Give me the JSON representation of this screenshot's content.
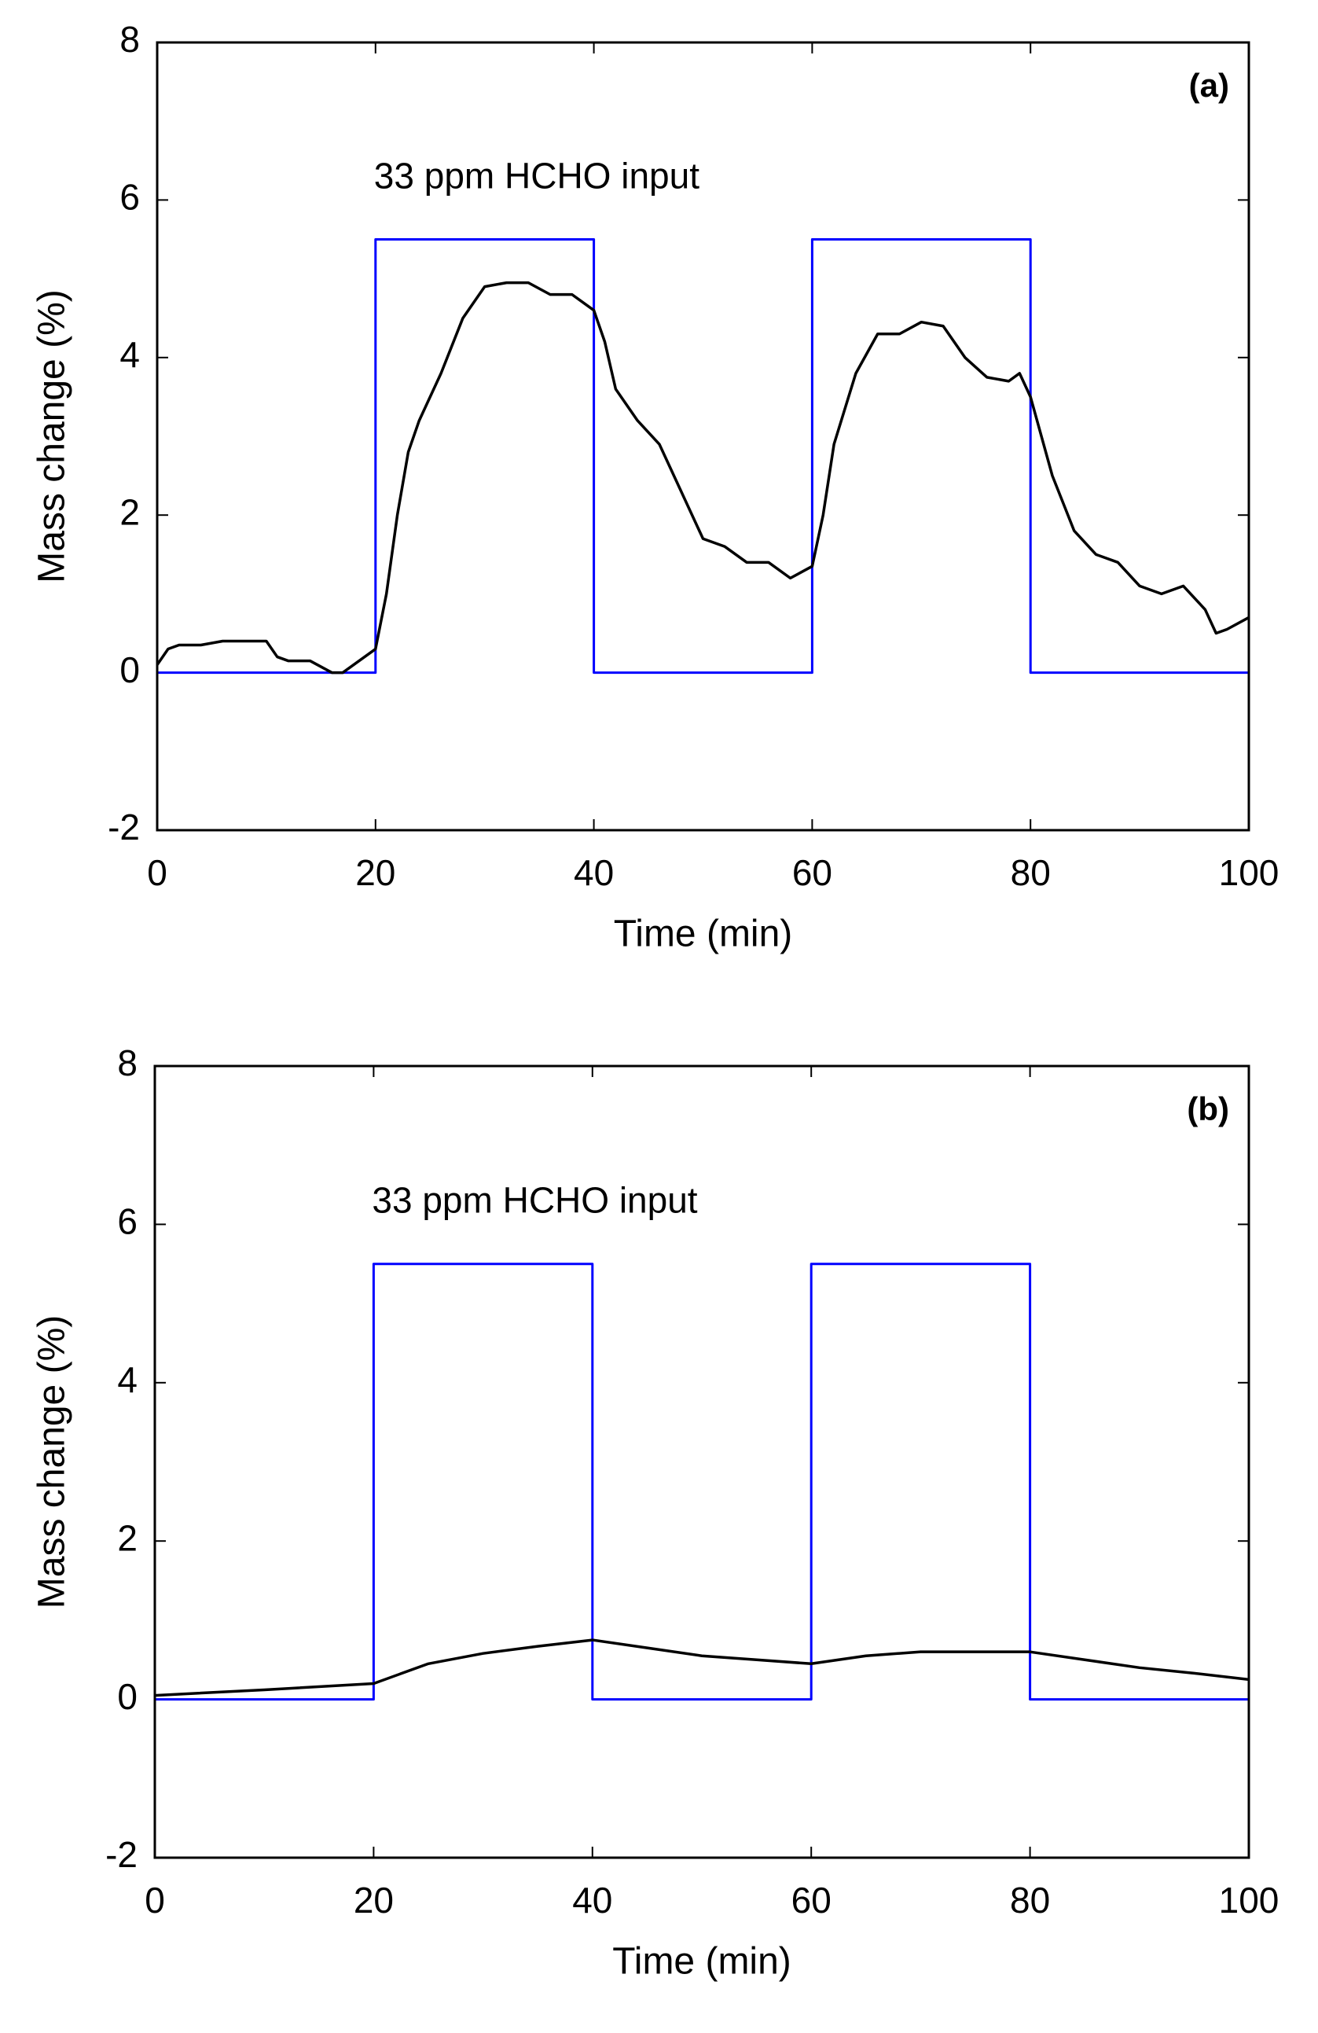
{
  "chart_data": [
    {
      "type": "line",
      "panel_label": "(a)",
      "annotation": "33 ppm HCHO input",
      "xlabel": "Time (min)",
      "ylabel": "Mass change (%)",
      "xlim": [
        0,
        100
      ],
      "xticks": [
        0,
        20,
        40,
        60,
        80,
        100
      ],
      "ylim": [
        -2,
        8
      ],
      "yticks": [
        -2,
        0,
        2,
        4,
        6,
        8
      ],
      "series": [
        {
          "color": "#0000ff",
          "x": [
            0,
            20,
            20,
            40,
            40,
            60,
            60,
            80,
            80,
            100
          ],
          "values": [
            0,
            0,
            5.5,
            5.5,
            0,
            0,
            5.5,
            5.5,
            0,
            0
          ]
        },
        {
          "color": "#000000",
          "x": [
            0,
            1,
            2,
            4,
            6,
            8,
            10,
            11,
            12,
            14,
            16,
            17,
            18,
            20,
            21,
            22,
            23,
            24,
            26,
            28,
            30,
            32,
            34,
            36,
            38,
            40,
            41,
            42,
            44,
            46,
            48,
            50,
            52,
            54,
            56,
            58,
            60,
            61,
            62,
            64,
            66,
            68,
            70,
            72,
            74,
            76,
            78,
            79,
            80,
            82,
            84,
            86,
            88,
            90,
            92,
            94,
            96,
            97,
            98,
            100
          ],
          "values": [
            0.1,
            0.3,
            0.35,
            0.35,
            0.4,
            0.4,
            0.4,
            0.2,
            0.15,
            0.15,
            0.0,
            0.0,
            0.1,
            0.3,
            1.0,
            2.0,
            2.8,
            3.2,
            3.8,
            4.5,
            4.9,
            4.95,
            4.95,
            4.8,
            4.8,
            4.6,
            4.2,
            3.6,
            3.2,
            2.9,
            2.3,
            1.7,
            1.6,
            1.4,
            1.4,
            1.2,
            1.35,
            2.0,
            2.9,
            3.8,
            4.3,
            4.3,
            4.45,
            4.4,
            4.0,
            3.75,
            3.7,
            3.8,
            3.5,
            2.5,
            1.8,
            1.5,
            1.4,
            1.1,
            1.0,
            1.1,
            0.8,
            0.5,
            0.55,
            0.7
          ]
        }
      ]
    },
    {
      "type": "line",
      "panel_label": "(b)",
      "annotation": "33 ppm HCHO input",
      "xlabel": "Time (min)",
      "ylabel": "Mass change (%)",
      "xlim": [
        0,
        100
      ],
      "xticks": [
        0,
        20,
        40,
        60,
        80,
        100
      ],
      "ylim": [
        -2,
        8
      ],
      "yticks": [
        -2,
        0,
        2,
        4,
        6,
        8
      ],
      "series": [
        {
          "color": "#0000ff",
          "x": [
            0,
            20,
            20,
            40,
            40,
            60,
            60,
            80,
            80,
            100
          ],
          "values": [
            0,
            0,
            5.5,
            5.5,
            0,
            0,
            5.5,
            5.5,
            0,
            0
          ]
        },
        {
          "color": "#000000",
          "x": [
            0,
            10,
            20,
            25,
            30,
            35,
            40,
            45,
            50,
            55,
            60,
            65,
            70,
            75,
            80,
            85,
            90,
            95,
            100
          ],
          "values": [
            0.05,
            0.12,
            0.2,
            0.45,
            0.58,
            0.67,
            0.75,
            0.65,
            0.55,
            0.5,
            0.45,
            0.55,
            0.6,
            0.6,
            0.6,
            0.5,
            0.4,
            0.33,
            0.25
          ]
        }
      ]
    }
  ]
}
